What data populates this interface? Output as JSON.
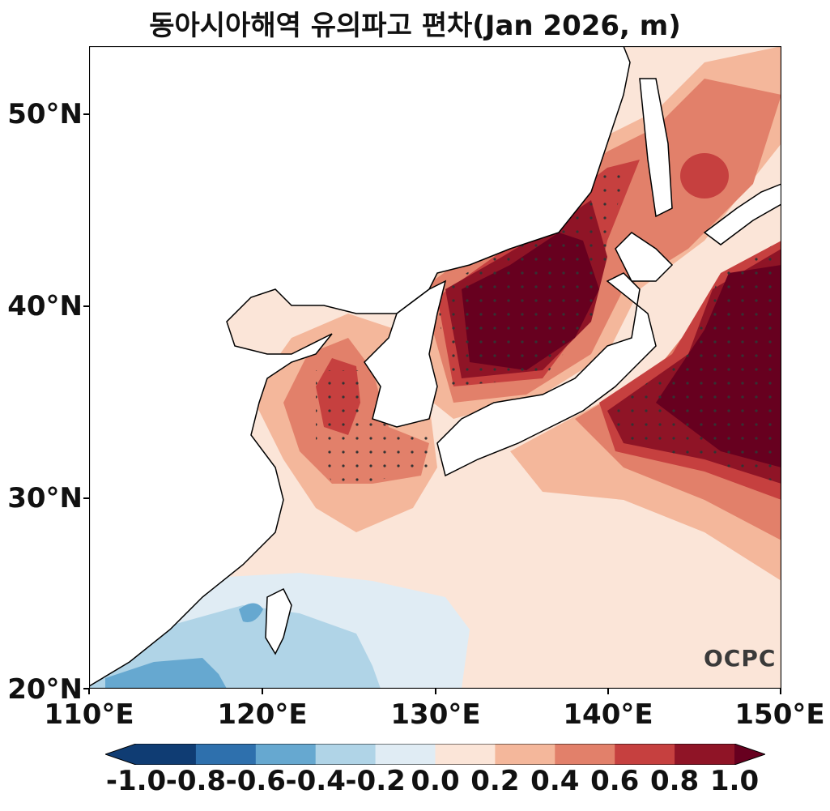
{
  "title": "동아시아해역 유의파고 편차(Jan 2026, m)",
  "map": {
    "lat_ticks": [
      "50°N",
      "40°N",
      "30°N",
      "20°N"
    ],
    "lon_ticks": [
      "110°E",
      "120°E",
      "130°E",
      "140°E",
      "150°E"
    ],
    "lat_range": [
      20,
      53.5
    ],
    "lon_range": [
      110,
      150
    ]
  },
  "colorbar": {
    "labels": [
      "-1.0",
      "-0.8",
      "-0.6",
      "-0.4",
      "-0.2",
      "0.0",
      "0.2",
      "0.4",
      "0.6",
      "0.8",
      "1.0"
    ],
    "colors": [
      "#0f3c73",
      "#2e70ad",
      "#66a8d0",
      "#b0d4e7",
      "#e0ecf4",
      "#fbe5d8",
      "#f4b79b",
      "#e2806a",
      "#c6403f",
      "#8f1426",
      "#67001f"
    ]
  },
  "logo": "OCPC"
}
